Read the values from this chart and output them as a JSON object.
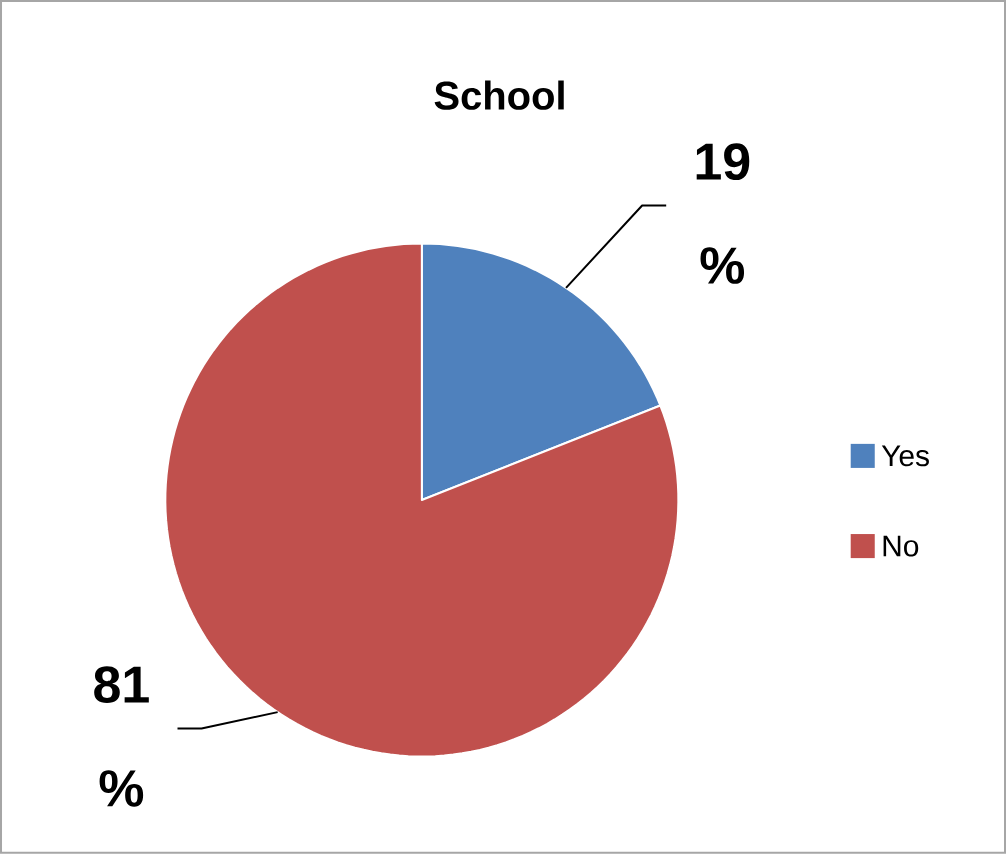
{
  "chart_data": {
    "type": "pie",
    "title": "School",
    "categories": [
      "Yes",
      "No"
    ],
    "values": [
      19,
      81
    ],
    "colors": [
      "#4f81bd",
      "#c0504d"
    ],
    "value_labels": [
      "19 %",
      "81 %"
    ],
    "legend": "right"
  }
}
